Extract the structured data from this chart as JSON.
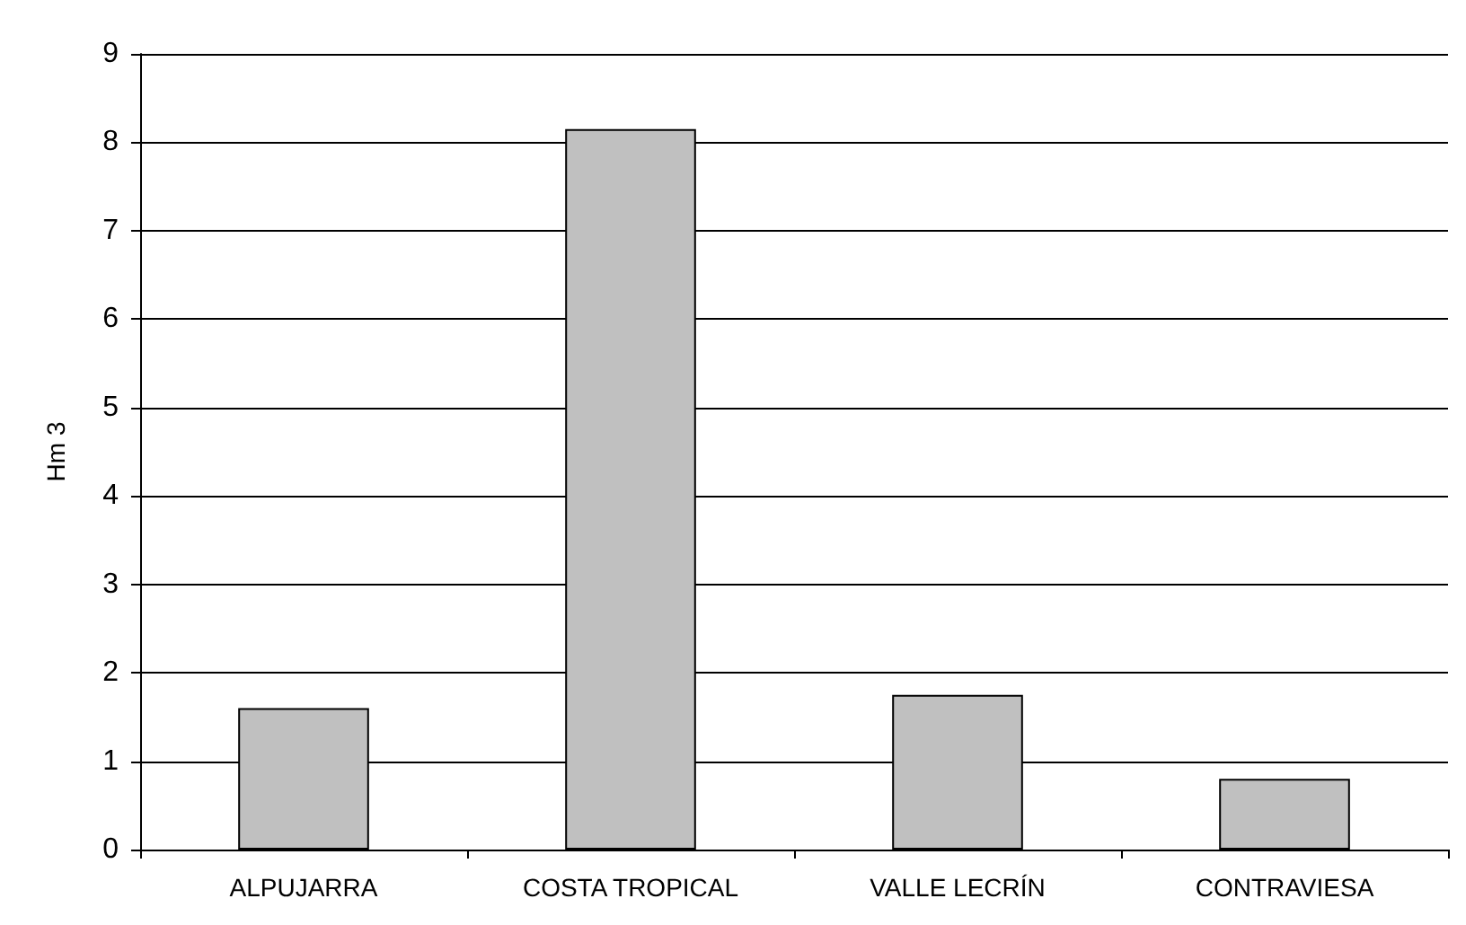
{
  "chart_data": {
    "type": "bar",
    "ylabel": "Hm 3",
    "categories": [
      "ALPUJARRA",
      "COSTA TROPICAL",
      "VALLE LECRÍN",
      "CONTRAVIESA"
    ],
    "values": [
      1.6,
      8.15,
      1.75,
      0.8
    ],
    "color": "#c0c0c0",
    "ylim": [
      0,
      9
    ],
    "yticks": [
      0,
      1,
      2,
      3,
      4,
      5,
      6,
      7,
      8,
      9
    ],
    "grid": true
  }
}
